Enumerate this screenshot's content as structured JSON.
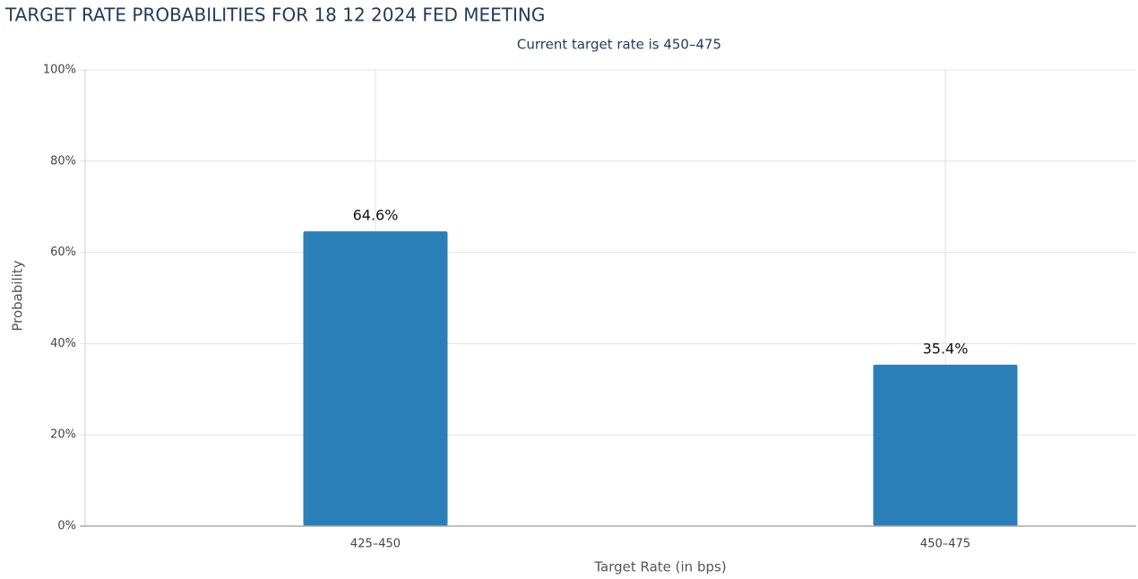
{
  "chart_data": {
    "type": "bar",
    "title": "TARGET RATE PROBABILITIES FOR 18 12 2024 FED MEETING",
    "subtitle": "Current target rate is 450–475",
    "x_label": "Target Rate (in bps)",
    "y_label": "Probability",
    "categories": [
      "425–450",
      "450–475"
    ],
    "values": [
      64.6,
      35.4
    ],
    "value_labels": [
      "64.6%",
      "35.4%"
    ],
    "color": "#2b7fb8",
    "ylim": [
      0,
      100
    ],
    "yticks": [
      {
        "value": 0,
        "label": "0%"
      },
      {
        "value": 20,
        "label": "20%"
      },
      {
        "value": 40,
        "label": "40%"
      },
      {
        "value": 60,
        "label": "60%"
      },
      {
        "value": 80,
        "label": "80%"
      },
      {
        "value": 100,
        "label": "100%"
      }
    ],
    "grid": true
  }
}
